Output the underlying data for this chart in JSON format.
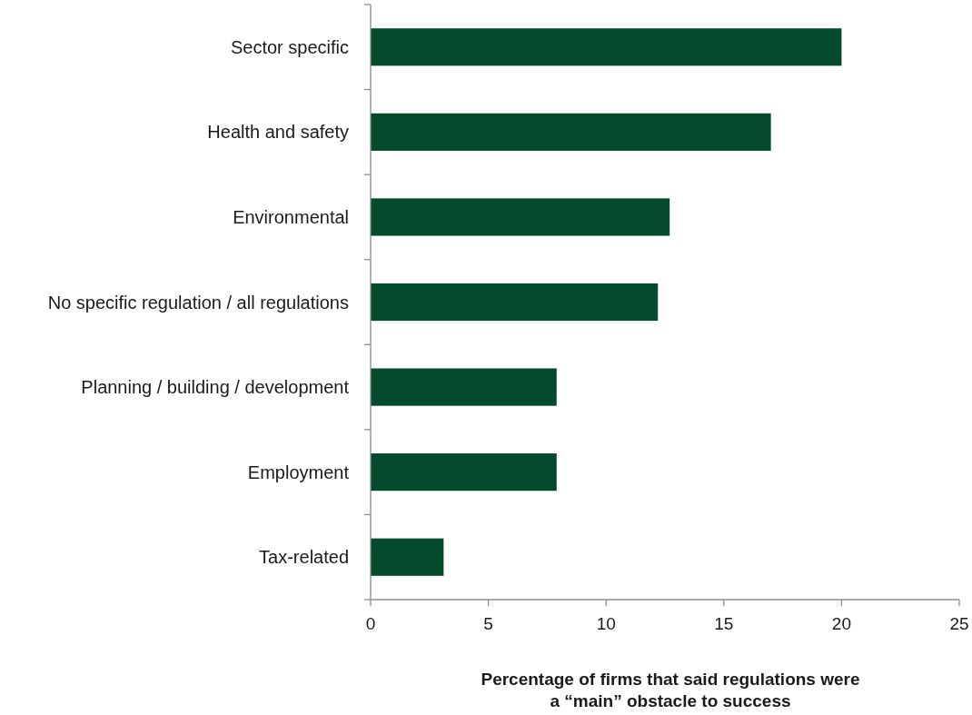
{
  "chart_data": {
    "type": "bar",
    "orientation": "horizontal",
    "categories": [
      "Sector specific",
      "Health and safety",
      "Environmental",
      "No specific regulation / all regulations",
      "Planning / building / development",
      "Employment",
      "Tax-related"
    ],
    "values": [
      20.0,
      17.0,
      12.7,
      12.2,
      7.9,
      7.9,
      3.1
    ],
    "color": "#034b2c",
    "xlim": [
      0,
      25
    ],
    "xticks": [
      0,
      5,
      10,
      15,
      20,
      25
    ],
    "xlabel": "Percentage of firms that said regulations were a “main” obstacle to success"
  }
}
